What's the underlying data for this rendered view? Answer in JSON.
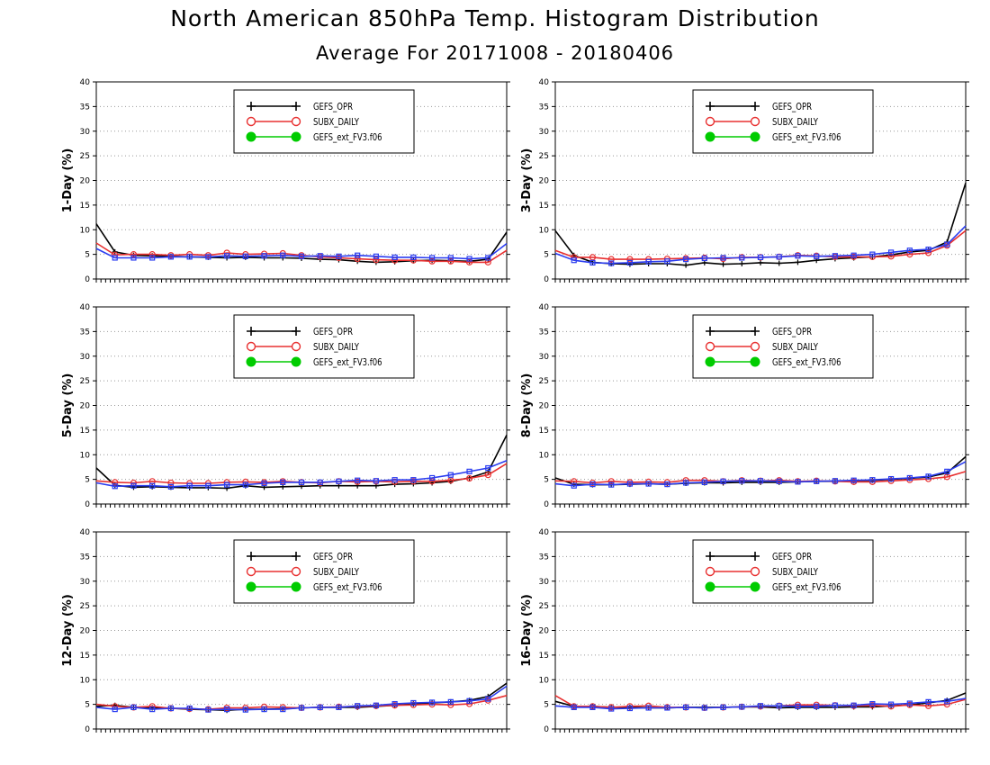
{
  "header": {
    "title": "North American 850hPa Temp. Histogram Distribution",
    "subtitle": "Average For 20171008 - 20180406"
  },
  "legend": [
    "GEFS_OPR",
    "SUBX_DAILY",
    "GEFS_ext_FV3.f06"
  ],
  "colors": {
    "GEFS_OPR": "#000000",
    "SUBX_DAILY": "#e83030",
    "GEFS_ext_FV3.f06": "#00cc00",
    "overlay_blue": "#2a3cf0"
  },
  "chart_data": [
    {
      "type": "line",
      "ylabel": "1-Day (%)",
      "ylim": [
        0,
        40
      ],
      "yticks": [
        "0",
        "5",
        "10",
        "15",
        "20",
        "25",
        "30",
        "35",
        "40"
      ],
      "grid": true,
      "legend_position": "top-center",
      "series": [
        {
          "name": "GEFS_OPR",
          "marker": "plus",
          "values": [
            11.2,
            5.5,
            4.8,
            4.7,
            4.6,
            4.5,
            4.4,
            4.3,
            4.4,
            4.3,
            4.3,
            4.2,
            4.0,
            3.9,
            3.6,
            3.4,
            3.5,
            3.7,
            3.8,
            3.7,
            3.6,
            4.0,
            9.5
          ]
        },
        {
          "name": "SUBX_DAILY",
          "marker": "open-circle",
          "values": [
            7.3,
            4.9,
            5.0,
            5.0,
            4.8,
            5.0,
            4.8,
            5.3,
            5.0,
            5.1,
            5.2,
            4.8,
            4.5,
            4.3,
            4.1,
            3.9,
            3.8,
            3.8,
            3.6,
            3.6,
            3.4,
            3.4,
            5.8
          ]
        },
        {
          "name": "GEFS_ext_FV3.f06",
          "marker": "filled-circle",
          "values": [
            6.2,
            4.3,
            4.3,
            4.3,
            4.5,
            4.5,
            4.5,
            4.7,
            4.6,
            4.7,
            4.8,
            4.6,
            4.7,
            4.6,
            4.8,
            4.6,
            4.4,
            4.4,
            4.3,
            4.3,
            4.1,
            4.3,
            7.2
          ]
        }
      ]
    },
    {
      "type": "line",
      "ylabel": "3-Day (%)",
      "ylim": [
        0,
        40
      ],
      "yticks": [
        "0",
        "5",
        "10",
        "15",
        "20",
        "25",
        "30",
        "35",
        "40"
      ],
      "grid": true,
      "legend_position": "top-center",
      "series": [
        {
          "name": "GEFS_OPR",
          "marker": "plus",
          "values": [
            9.8,
            4.8,
            3.4,
            3.1,
            3.0,
            3.1,
            3.1,
            2.8,
            3.3,
            3.0,
            3.1,
            3.3,
            3.2,
            3.4,
            3.8,
            4.1,
            4.3,
            4.5,
            4.9,
            5.5,
            5.8,
            7.5,
            19.5
          ]
        },
        {
          "name": "SUBX_DAILY",
          "marker": "open-circle",
          "values": [
            5.8,
            4.4,
            4.4,
            4.0,
            4.0,
            4.0,
            4.1,
            4.2,
            4.3,
            4.1,
            4.4,
            4.4,
            4.5,
            4.8,
            4.7,
            4.5,
            4.5,
            4.5,
            4.6,
            5.0,
            5.3,
            6.8,
            9.8
          ]
        },
        {
          "name": "GEFS_ext_FV3.f06",
          "marker": "filled-circle",
          "values": [
            5.2,
            3.8,
            3.3,
            3.2,
            3.3,
            3.5,
            3.6,
            4.0,
            4.2,
            4.3,
            4.3,
            4.4,
            4.5,
            4.7,
            4.6,
            4.7,
            4.8,
            5.0,
            5.4,
            5.8,
            6.0,
            7.0,
            10.8
          ]
        }
      ]
    },
    {
      "type": "line",
      "ylabel": "5-Day (%)",
      "ylim": [
        0,
        40
      ],
      "yticks": [
        "0",
        "5",
        "10",
        "15",
        "20",
        "25",
        "30",
        "35",
        "40"
      ],
      "grid": true,
      "legend_position": "top-center",
      "series": [
        {
          "name": "GEFS_OPR",
          "marker": "plus",
          "values": [
            7.3,
            3.8,
            3.4,
            3.5,
            3.4,
            3.3,
            3.3,
            3.2,
            3.7,
            3.4,
            3.5,
            3.6,
            3.7,
            3.7,
            3.7,
            3.7,
            4.0,
            4.1,
            4.3,
            4.6,
            5.3,
            6.5,
            14.0
          ]
        },
        {
          "name": "SUBX_DAILY",
          "marker": "open-circle",
          "values": [
            4.7,
            4.4,
            4.3,
            4.6,
            4.3,
            4.2,
            4.2,
            4.4,
            4.5,
            4.4,
            4.6,
            4.4,
            4.3,
            4.6,
            4.5,
            4.6,
            4.5,
            4.6,
            4.6,
            4.8,
            5.2,
            5.9,
            8.2
          ]
        },
        {
          "name": "GEFS_ext_FV3.f06",
          "marker": "filled-circle",
          "values": [
            4.3,
            3.6,
            3.7,
            3.7,
            3.5,
            3.7,
            3.7,
            3.9,
            3.9,
            4.2,
            4.4,
            4.4,
            4.4,
            4.6,
            4.8,
            4.7,
            4.9,
            4.9,
            5.3,
            5.9,
            6.6,
            7.3,
            8.8
          ]
        }
      ]
    },
    {
      "type": "line",
      "ylabel": "8-Day (%)",
      "ylim": [
        0,
        40
      ],
      "yticks": [
        "0",
        "5",
        "10",
        "15",
        "20",
        "25",
        "30",
        "35",
        "40"
      ],
      "grid": true,
      "legend_position": "top-center",
      "series": [
        {
          "name": "GEFS_OPR",
          "marker": "plus",
          "values": [
            5.3,
            4.0,
            3.9,
            3.9,
            4.0,
            4.1,
            4.0,
            4.2,
            4.3,
            4.3,
            4.4,
            4.4,
            4.4,
            4.5,
            4.6,
            4.6,
            4.7,
            4.8,
            5.0,
            5.2,
            5.5,
            6.3,
            9.6
          ]
        },
        {
          "name": "SUBX_DAILY",
          "marker": "open-circle",
          "values": [
            4.7,
            4.6,
            4.3,
            4.6,
            4.4,
            4.5,
            4.4,
            4.8,
            4.8,
            4.6,
            4.8,
            4.7,
            4.8,
            4.6,
            4.7,
            4.6,
            4.5,
            4.5,
            4.7,
            4.9,
            5.1,
            5.5,
            6.6
          ]
        },
        {
          "name": "GEFS_ext_FV3.f06",
          "marker": "filled-circle",
          "values": [
            4.1,
            3.7,
            4.0,
            3.9,
            4.1,
            4.1,
            4.0,
            4.3,
            4.4,
            4.6,
            4.7,
            4.7,
            4.6,
            4.5,
            4.6,
            4.7,
            4.8,
            4.9,
            5.1,
            5.3,
            5.6,
            6.6,
            8.6
          ]
        }
      ]
    },
    {
      "type": "line",
      "ylabel": "12-Day (%)",
      "ylim": [
        0,
        40
      ],
      "yticks": [
        "0",
        "5",
        "10",
        "15",
        "20",
        "25",
        "30",
        "35",
        "40"
      ],
      "grid": true,
      "legend_position": "top-center",
      "series": [
        {
          "name": "GEFS_OPR",
          "marker": "plus",
          "values": [
            4.6,
            4.8,
            4.4,
            4.3,
            4.2,
            4.0,
            3.9,
            3.8,
            4.0,
            4.0,
            4.1,
            4.3,
            4.4,
            4.4,
            4.4,
            4.6,
            4.8,
            5.1,
            5.3,
            5.5,
            5.8,
            6.6,
            9.3
          ]
        },
        {
          "name": "SUBX_DAILY",
          "marker": "open-circle",
          "values": [
            5.0,
            4.6,
            4.4,
            4.6,
            4.2,
            4.1,
            4.0,
            4.3,
            4.3,
            4.5,
            4.4,
            4.3,
            4.4,
            4.5,
            4.6,
            4.7,
            4.8,
            4.9,
            5.0,
            4.9,
            5.1,
            5.8,
            6.8
          ]
        },
        {
          "name": "GEFS_ext_FV3.f06",
          "marker": "filled-circle",
          "values": [
            4.4,
            4.0,
            4.4,
            4.0,
            4.2,
            4.2,
            3.9,
            4.0,
            3.9,
            4.0,
            4.0,
            4.3,
            4.4,
            4.4,
            4.7,
            4.8,
            5.1,
            5.3,
            5.4,
            5.5,
            5.7,
            6.1,
            8.7
          ]
        }
      ]
    },
    {
      "type": "line",
      "ylabel": "16-Day (%)",
      "ylim": [
        0,
        40
      ],
      "yticks": [
        "0",
        "5",
        "10",
        "15",
        "20",
        "25",
        "30",
        "35",
        "40"
      ],
      "grid": true,
      "legend_position": "top-center",
      "series": [
        {
          "name": "GEFS_OPR",
          "marker": "plus",
          "values": [
            5.6,
            4.6,
            4.6,
            4.4,
            4.4,
            4.3,
            4.3,
            4.4,
            4.4,
            4.4,
            4.5,
            4.5,
            4.3,
            4.4,
            4.4,
            4.4,
            4.5,
            4.5,
            4.7,
            4.9,
            5.3,
            5.8,
            7.3
          ]
        },
        {
          "name": "SUBX_DAILY",
          "marker": "open-circle",
          "values": [
            6.8,
            4.6,
            4.6,
            4.4,
            4.6,
            4.7,
            4.4,
            4.4,
            4.3,
            4.4,
            4.5,
            4.6,
            4.7,
            4.9,
            4.9,
            4.8,
            4.7,
            4.8,
            4.6,
            4.9,
            4.7,
            5.0,
            6.0
          ]
        },
        {
          "name": "GEFS_ext_FV3.f06",
          "marker": "filled-circle",
          "values": [
            4.7,
            4.4,
            4.4,
            4.1,
            4.2,
            4.3,
            4.3,
            4.4,
            4.3,
            4.4,
            4.5,
            4.7,
            4.7,
            4.6,
            4.6,
            4.8,
            4.8,
            5.1,
            5.0,
            5.2,
            5.5,
            5.6,
            6.2
          ]
        }
      ]
    }
  ]
}
